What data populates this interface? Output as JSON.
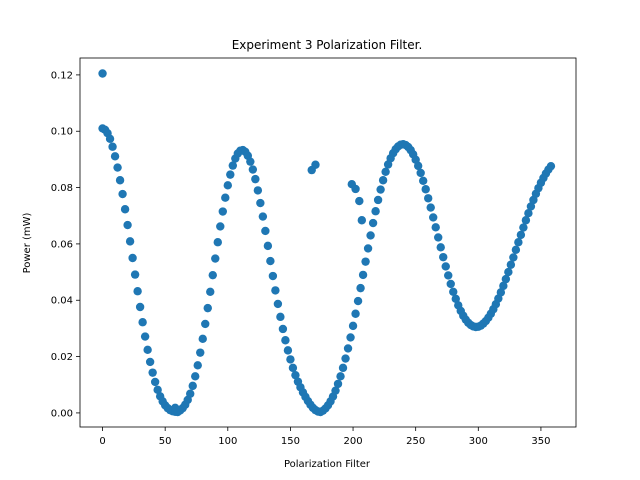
{
  "chart_data": {
    "type": "scatter",
    "title": "Experiment 3 Polarization Filter.",
    "xlabel": "Polarization Filter",
    "ylabel": "Power (mW)",
    "xlim": [
      -18,
      378
    ],
    "ylim": [
      -0.005,
      0.126
    ],
    "xticks": [
      0,
      50,
      100,
      150,
      200,
      250,
      300,
      350
    ],
    "yticks": [
      0.0,
      0.02,
      0.04,
      0.06,
      0.08,
      0.1,
      0.12
    ],
    "xtick_labels": [
      "0",
      "50",
      "100",
      "150",
      "200",
      "250",
      "300",
      "350"
    ],
    "ytick_labels": [
      "0.00",
      "0.02",
      "0.04",
      "0.06",
      "0.08",
      "0.10",
      "0.12"
    ],
    "grid": false,
    "marker_color": "#1f77b4",
    "series": [
      {
        "x": [
          0,
          2,
          4,
          6,
          8,
          10,
          12,
          14,
          16,
          18,
          20,
          22,
          24,
          26,
          28,
          30,
          32,
          34,
          36,
          38,
          40,
          42,
          44,
          46,
          48,
          50,
          52,
          54,
          56,
          58,
          60,
          62,
          64,
          66,
          68,
          70,
          72,
          74,
          76,
          78,
          80,
          82,
          84,
          86,
          88,
          90,
          92,
          94,
          96,
          98,
          100,
          102,
          104,
          106,
          108,
          110,
          112,
          114,
          116,
          118,
          120,
          122,
          124,
          126,
          128,
          130,
          132,
          134,
          136,
          138,
          140,
          142,
          144,
          146,
          148,
          150,
          152,
          154,
          156,
          158,
          160,
          162,
          164,
          166,
          168,
          170,
          172,
          174,
          176,
          178,
          180,
          182,
          184,
          186,
          188,
          190,
          192,
          194,
          196,
          198,
          200,
          202,
          204,
          206,
          208,
          210,
          212,
          214,
          216,
          218,
          220,
          222,
          224,
          226,
          228,
          230,
          232,
          234,
          236,
          238,
          240,
          242,
          244,
          246,
          248,
          250,
          252,
          254,
          256,
          258,
          260,
          262,
          264,
          266,
          268,
          270,
          272,
          274,
          276,
          278,
          280,
          282,
          284,
          286,
          288,
          290,
          292,
          294,
          296,
          298,
          300,
          302,
          304,
          306,
          308,
          310,
          312,
          314,
          316,
          318,
          320,
          322,
          324,
          326,
          328,
          330,
          332,
          334,
          336,
          338,
          340,
          342,
          344,
          346,
          348,
          350,
          352,
          354,
          356,
          358,
          0,
          58,
          167,
          170,
          199,
          202,
          205,
          207
        ],
        "y": [
          0.101,
          0.1005,
          0.0993,
          0.0973,
          0.0945,
          0.0911,
          0.0871,
          0.0826,
          0.0777,
          0.0723,
          0.0667,
          0.0609,
          0.055,
          0.0491,
          0.0432,
          0.0376,
          0.0322,
          0.0271,
          0.0224,
          0.0181,
          0.0143,
          0.011,
          0.0082,
          0.0059,
          0.0041,
          0.0027,
          0.0017,
          0.001,
          0.0006,
          0.0004,
          0.0003,
          0.0009,
          0.0017,
          0.0029,
          0.0046,
          0.0068,
          0.0096,
          0.013,
          0.0169,
          0.0214,
          0.0263,
          0.0316,
          0.0372,
          0.043,
          0.0489,
          0.0548,
          0.0606,
          0.0662,
          0.0715,
          0.0764,
          0.0808,
          0.0846,
          0.0878,
          0.0903,
          0.0921,
          0.0931,
          0.0933,
          0.0927,
          0.0913,
          0.0892,
          0.0864,
          0.083,
          0.079,
          0.0745,
          0.0697,
          0.0646,
          0.0593,
          0.0539,
          0.0486,
          0.0435,
          0.0387,
          0.0341,
          0.0298,
          0.0258,
          0.0222,
          0.019,
          0.016,
          0.0134,
          0.0111,
          0.0091,
          0.0073,
          0.0057,
          0.0042,
          0.0029,
          0.0018,
          0.001,
          0.0005,
          0.0003,
          0.0008,
          0.0016,
          0.0027,
          0.0041,
          0.0058,
          0.0079,
          0.0103,
          0.013,
          0.016,
          0.0193,
          0.0229,
          0.0268,
          0.0309,
          0.0352,
          0.0397,
          0.0443,
          0.049,
          0.0537,
          0.0584,
          0.063,
          0.0674,
          0.0716,
          0.0756,
          0.0793,
          0.0826,
          0.0856,
          0.0882,
          0.0904,
          0.0922,
          0.0936,
          0.0946,
          0.0952,
          0.0954,
          0.0951,
          0.0944,
          0.0933,
          0.0918,
          0.0899,
          0.0877,
          0.0852,
          0.0824,
          0.0794,
          0.0762,
          0.0729,
          0.0694,
          0.0659,
          0.0623,
          0.0588,
          0.0553,
          0.052,
          0.0488,
          0.0458,
          0.043,
          0.0405,
          0.0382,
          0.0362,
          0.0345,
          0.0331,
          0.032,
          0.0312,
          0.0307,
          0.0305,
          0.0306,
          0.031,
          0.0317,
          0.0326,
          0.0338,
          0.0352,
          0.0368,
          0.0386,
          0.0406,
          0.0428,
          0.0451,
          0.0475,
          0.05,
          0.0526,
          0.0552,
          0.0579,
          0.0606,
          0.0632,
          0.0658,
          0.0684,
          0.0709,
          0.0733,
          0.0756,
          0.0778,
          0.0798,
          0.0817,
          0.0834,
          0.085,
          0.0864,
          0.0876,
          0.1205,
          0.0018,
          0.0862,
          0.0881,
          0.0812,
          0.0795,
          0.0752,
          0.0684
        ]
      }
    ]
  }
}
